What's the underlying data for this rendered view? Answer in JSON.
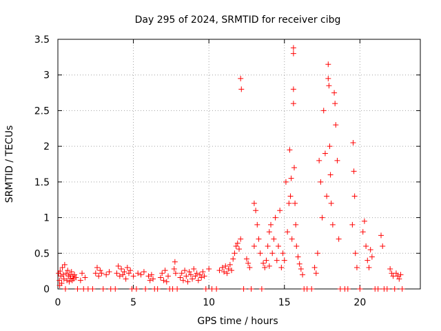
{
  "chart_data": {
    "type": "scatter",
    "title": "Day 295 of 2024, SRMTID for receiver cibg",
    "xlabel": "GPS time / hours",
    "ylabel": "SRMTID / TECUs",
    "xlim": [
      0,
      24
    ],
    "ylim": [
      0,
      3.5
    ],
    "x_ticks": [
      0,
      5,
      10,
      15,
      20
    ],
    "x_tick_labels": [
      "0",
      "5",
      "10",
      "15",
      "20"
    ],
    "y_ticks": [
      0,
      0.5,
      1,
      1.5,
      2,
      2.5,
      3,
      3.5
    ],
    "y_tick_labels": [
      "0",
      "0.5",
      "1",
      "1.5",
      "2",
      "2.5",
      "3",
      "3.5"
    ],
    "grid": true,
    "marker": "+",
    "series": [
      {
        "name": "SRMTID",
        "color": "#ff0000",
        "points": [
          [
            0.05,
            0.22
          ],
          [
            0.1,
            0.12
          ],
          [
            0.12,
            0.05
          ],
          [
            0.15,
            0.25
          ],
          [
            0.2,
            0.18
          ],
          [
            0.25,
            0.08
          ],
          [
            0.3,
            0.3
          ],
          [
            0.35,
            0.2
          ],
          [
            0.4,
            0.14
          ],
          [
            0.45,
            0.34
          ],
          [
            0.5,
            0.0
          ],
          [
            0.55,
            0.22
          ],
          [
            0.6,
            0.12
          ],
          [
            0.65,
            0.26
          ],
          [
            0.7,
            0.18
          ],
          [
            0.75,
            0.1
          ],
          [
            0.8,
            0.2
          ],
          [
            0.85,
            0.15
          ],
          [
            0.9,
            0.24
          ],
          [
            0.95,
            0.12
          ],
          [
            1.0,
            0.18
          ],
          [
            1.05,
            0.14
          ],
          [
            1.1,
            0.2
          ],
          [
            1.2,
            0.16
          ],
          [
            1.3,
            0.0
          ],
          [
            1.5,
            0.12
          ],
          [
            1.6,
            0.22
          ],
          [
            1.7,
            0.0
          ],
          [
            1.8,
            0.16
          ],
          [
            2.0,
            0.0
          ],
          [
            2.3,
            0.0
          ],
          [
            2.5,
            0.22
          ],
          [
            2.6,
            0.3
          ],
          [
            2.7,
            0.18
          ],
          [
            2.8,
            0.26
          ],
          [
            2.9,
            0.22
          ],
          [
            3.0,
            0.0
          ],
          [
            3.2,
            0.2
          ],
          [
            3.4,
            0.24
          ],
          [
            3.5,
            0.0
          ],
          [
            3.8,
            0.0
          ],
          [
            3.9,
            0.22
          ],
          [
            4.0,
            0.32
          ],
          [
            4.1,
            0.18
          ],
          [
            4.2,
            0.28
          ],
          [
            4.3,
            0.2
          ],
          [
            4.4,
            0.24
          ],
          [
            4.5,
            0.14
          ],
          [
            4.6,
            0.3
          ],
          [
            4.7,
            0.22
          ],
          [
            4.8,
            0.26
          ],
          [
            4.9,
            0.0
          ],
          [
            5.0,
            0.18
          ],
          [
            5.2,
            0.0
          ],
          [
            5.3,
            0.22
          ],
          [
            5.5,
            0.2
          ],
          [
            5.7,
            0.24
          ],
          [
            5.8,
            0.0
          ],
          [
            6.0,
            0.18
          ],
          [
            6.1,
            0.12
          ],
          [
            6.2,
            0.2
          ],
          [
            6.3,
            0.14
          ],
          [
            6.4,
            0.0
          ],
          [
            6.6,
            0.0
          ],
          [
            6.8,
            0.16
          ],
          [
            6.9,
            0.22
          ],
          [
            7.0,
            0.12
          ],
          [
            7.1,
            0.26
          ],
          [
            7.2,
            0.1
          ],
          [
            7.3,
            0.18
          ],
          [
            7.4,
            0.0
          ],
          [
            7.6,
            0.0
          ],
          [
            7.7,
            0.28
          ],
          [
            7.75,
            0.38
          ],
          [
            7.8,
            0.22
          ],
          [
            7.9,
            0.0
          ],
          [
            8.1,
            0.16
          ],
          [
            8.2,
            0.22
          ],
          [
            8.3,
            0.12
          ],
          [
            8.4,
            0.26
          ],
          [
            8.5,
            0.18
          ],
          [
            8.6,
            0.1
          ],
          [
            8.7,
            0.24
          ],
          [
            8.8,
            0.2
          ],
          [
            8.9,
            0.14
          ],
          [
            9.0,
            0.28
          ],
          [
            9.1,
            0.18
          ],
          [
            9.2,
            0.22
          ],
          [
            9.3,
            0.12
          ],
          [
            9.4,
            0.2
          ],
          [
            9.5,
            0.16
          ],
          [
            9.6,
            0.24
          ],
          [
            9.7,
            0.18
          ],
          [
            9.8,
            0.0
          ],
          [
            10.0,
            0.28
          ],
          [
            10.2,
            0.0
          ],
          [
            10.5,
            0.0
          ],
          [
            10.7,
            0.26
          ],
          [
            10.9,
            0.3
          ],
          [
            11.0,
            0.24
          ],
          [
            11.1,
            0.32
          ],
          [
            11.2,
            0.22
          ],
          [
            11.3,
            0.28
          ],
          [
            11.4,
            0.34
          ],
          [
            11.5,
            0.26
          ],
          [
            11.6,
            0.42
          ],
          [
            11.7,
            0.5
          ],
          [
            11.8,
            0.6
          ],
          [
            11.9,
            0.64
          ],
          [
            12.0,
            0.56
          ],
          [
            12.1,
            0.7
          ],
          [
            12.1,
            2.95
          ],
          [
            12.15,
            2.8
          ],
          [
            12.3,
            0.0
          ],
          [
            12.5,
            0.42
          ],
          [
            12.6,
            0.36
          ],
          [
            12.7,
            0.3
          ],
          [
            12.8,
            0.0
          ],
          [
            13.0,
            0.6
          ],
          [
            13.0,
            1.2
          ],
          [
            13.1,
            1.1
          ],
          [
            13.2,
            0.9
          ],
          [
            13.3,
            0.7
          ],
          [
            13.4,
            0.5
          ],
          [
            13.5,
            0.0
          ],
          [
            13.6,
            0.36
          ],
          [
            13.7,
            0.3
          ],
          [
            13.8,
            0.4
          ],
          [
            13.9,
            0.6
          ],
          [
            14.0,
            0.8
          ],
          [
            14.0,
            0.32
          ],
          [
            14.1,
            0.9
          ],
          [
            14.2,
            0.5
          ],
          [
            14.3,
            0.7
          ],
          [
            14.4,
            1.0
          ],
          [
            14.5,
            0.4
          ],
          [
            14.6,
            0.6
          ],
          [
            14.7,
            1.1
          ],
          [
            14.8,
            0.3
          ],
          [
            14.9,
            0.5
          ],
          [
            15.0,
            0.4
          ],
          [
            15.1,
            1.5
          ],
          [
            15.2,
            0.8
          ],
          [
            15.3,
            1.2
          ],
          [
            15.35,
            1.95
          ],
          [
            15.4,
            1.3
          ],
          [
            15.45,
            1.55
          ],
          [
            15.5,
            0.7
          ],
          [
            15.6,
            3.38
          ],
          [
            15.6,
            3.3
          ],
          [
            15.6,
            2.8
          ],
          [
            15.6,
            2.6
          ],
          [
            15.65,
            1.7
          ],
          [
            15.7,
            1.2
          ],
          [
            15.75,
            0.9
          ],
          [
            15.8,
            0.6
          ],
          [
            15.9,
            0.45
          ],
          [
            16.0,
            0.35
          ],
          [
            16.1,
            0.28
          ],
          [
            16.2,
            0.2
          ],
          [
            16.3,
            0.0
          ],
          [
            16.5,
            0.0
          ],
          [
            16.8,
            0.0
          ],
          [
            17.0,
            0.3
          ],
          [
            17.1,
            0.22
          ],
          [
            17.2,
            0.5
          ],
          [
            17.3,
            1.8
          ],
          [
            17.4,
            1.5
          ],
          [
            17.5,
            1.0
          ],
          [
            17.6,
            2.5
          ],
          [
            17.7,
            1.9
          ],
          [
            17.8,
            1.3
          ],
          [
            17.9,
            3.15
          ],
          [
            17.9,
            2.95
          ],
          [
            17.95,
            2.85
          ],
          [
            18.0,
            2.0
          ],
          [
            18.05,
            1.6
          ],
          [
            18.1,
            1.2
          ],
          [
            18.2,
            0.9
          ],
          [
            18.3,
            2.75
          ],
          [
            18.35,
            2.6
          ],
          [
            18.4,
            2.3
          ],
          [
            18.5,
            1.8
          ],
          [
            18.6,
            0.7
          ],
          [
            18.7,
            0.0
          ],
          [
            19.0,
            0.0
          ],
          [
            19.2,
            0.0
          ],
          [
            19.5,
            0.9
          ],
          [
            19.55,
            2.05
          ],
          [
            19.6,
            1.65
          ],
          [
            19.65,
            1.3
          ],
          [
            19.7,
            0.5
          ],
          [
            19.8,
            0.3
          ],
          [
            20.0,
            0.0
          ],
          [
            20.2,
            0.8
          ],
          [
            20.3,
            0.95
          ],
          [
            20.4,
            0.6
          ],
          [
            20.5,
            0.4
          ],
          [
            20.6,
            0.3
          ],
          [
            20.7,
            0.55
          ],
          [
            20.8,
            0.45
          ],
          [
            21.0,
            0.0
          ],
          [
            21.2,
            0.0
          ],
          [
            21.4,
            0.75
          ],
          [
            21.5,
            0.6
          ],
          [
            21.6,
            0.0
          ],
          [
            21.8,
            0.0
          ],
          [
            22.0,
            0.28
          ],
          [
            22.1,
            0.22
          ],
          [
            22.2,
            0.18
          ],
          [
            22.3,
            0.0
          ],
          [
            22.4,
            0.22
          ],
          [
            22.5,
            0.18
          ],
          [
            22.6,
            0.14
          ],
          [
            22.7,
            0.2
          ],
          [
            22.8,
            0.0
          ]
        ]
      }
    ]
  }
}
